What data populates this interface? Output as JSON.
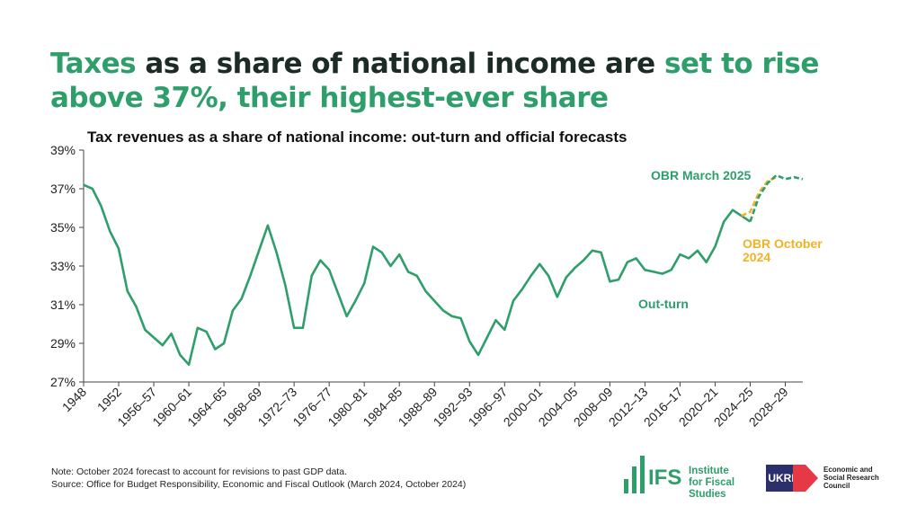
{
  "header": {
    "title_parts": [
      "Taxes",
      "as a share of national income are",
      "set to rise above 37%, their highest-ever share"
    ]
  },
  "chart_data": {
    "type": "line",
    "title": "Tax revenues as a share of national income: out-turn and official forecasts",
    "categories": [
      "1948",
      null,
      null,
      null,
      "1952",
      null,
      null,
      null,
      "1956–57",
      null,
      null,
      null,
      "1960–61",
      null,
      null,
      null,
      "1964–65",
      null,
      null,
      null,
      "1968–69",
      null,
      null,
      null,
      "1972–73",
      null,
      null,
      null,
      "1976–77",
      null,
      null,
      null,
      "1980–81",
      null,
      null,
      null,
      "1984–85",
      null,
      null,
      null,
      "1988–89",
      null,
      null,
      null,
      "1992–93",
      null,
      null,
      null,
      "1996–97",
      null,
      null,
      null,
      "2000–01",
      null,
      null,
      null,
      "2004–05",
      null,
      null,
      null,
      "2008–09",
      null,
      null,
      null,
      "2012–13",
      null,
      null,
      null,
      "2016–17",
      null,
      null,
      null,
      "2020–21",
      null,
      null,
      null,
      "2024–25",
      null,
      null,
      null,
      "2028–29",
      null,
      null
    ],
    "series": [
      {
        "name": "Out-turn",
        "color": "#2e9e6b",
        "dashed": false,
        "values": [
          37.2,
          37.0,
          36.1,
          34.8,
          33.9,
          31.7,
          30.9,
          29.7,
          29.3,
          28.9,
          29.5,
          28.4,
          27.9,
          29.8,
          29.6,
          28.7,
          29.0,
          30.7,
          31.3,
          32.5,
          33.8,
          35.1,
          33.7,
          32.0,
          29.8,
          29.8,
          32.5,
          33.3,
          32.8,
          31.6,
          30.4,
          31.2,
          32.1,
          34.0,
          33.7,
          33.0,
          33.6,
          32.7,
          32.5,
          31.7,
          31.2,
          30.7,
          30.4,
          30.3,
          29.1,
          28.4,
          29.3,
          30.2,
          29.7,
          31.2,
          31.8,
          32.5,
          33.1,
          32.5,
          31.4,
          32.4,
          32.9,
          33.3,
          33.8,
          33.7,
          32.2,
          32.3,
          33.2,
          33.4,
          32.8,
          32.7,
          32.6,
          32.8,
          33.6,
          33.4,
          33.8,
          33.2,
          34.0,
          35.3,
          35.9,
          35.6,
          35.3,
          null,
          null,
          null,
          null,
          null,
          null
        ]
      },
      {
        "name": "OBR October 2024",
        "color": "#f0b323",
        "dashed": true,
        "values": [
          null,
          null,
          null,
          null,
          null,
          null,
          null,
          null,
          null,
          null,
          null,
          null,
          null,
          null,
          null,
          null,
          null,
          null,
          null,
          null,
          null,
          null,
          null,
          null,
          null,
          null,
          null,
          null,
          null,
          null,
          null,
          null,
          null,
          null,
          null,
          null,
          null,
          null,
          null,
          null,
          null,
          null,
          null,
          null,
          null,
          null,
          null,
          null,
          null,
          null,
          null,
          null,
          null,
          null,
          null,
          null,
          null,
          null,
          null,
          null,
          null,
          null,
          null,
          null,
          null,
          null,
          null,
          null,
          null,
          null,
          null,
          null,
          null,
          null,
          null,
          35.6,
          35.8,
          36.8,
          37.4,
          37.6,
          null,
          null,
          null
        ]
      },
      {
        "name": "OBR March 2025",
        "color": "#2e9e6b",
        "dashed": true,
        "values": [
          null,
          null,
          null,
          null,
          null,
          null,
          null,
          null,
          null,
          null,
          null,
          null,
          null,
          null,
          null,
          null,
          null,
          null,
          null,
          null,
          null,
          null,
          null,
          null,
          null,
          null,
          null,
          null,
          null,
          null,
          null,
          null,
          null,
          null,
          null,
          null,
          null,
          null,
          null,
          null,
          null,
          null,
          null,
          null,
          null,
          null,
          null,
          null,
          null,
          null,
          null,
          null,
          null,
          null,
          null,
          null,
          null,
          null,
          null,
          null,
          null,
          null,
          null,
          null,
          null,
          null,
          null,
          null,
          null,
          null,
          null,
          null,
          null,
          null,
          null,
          null,
          35.3,
          36.6,
          37.3,
          37.7,
          37.5,
          37.6,
          37.5
        ]
      }
    ],
    "ylim": [
      27,
      39
    ],
    "yticks": [
      {
        "value": 27,
        "label": "27%"
      },
      {
        "value": 29,
        "label": "29%"
      },
      {
        "value": 31,
        "label": "31%"
      },
      {
        "value": 33,
        "label": "33%"
      },
      {
        "value": 35,
        "label": "35%"
      },
      {
        "value": 37,
        "label": "37%"
      },
      {
        "value": 39,
        "label": "39%"
      }
    ],
    "grid": false
  },
  "footer": {
    "note": "Note: October 2024 forecast to account for revisions to past GDP data.",
    "source": "Source: Office for Budget Responsibility, Economic and Fiscal Outlook (March 2024, October 2024)",
    "ifs": "IFS",
    "ifs_name": "Institute for Fiscal Studies",
    "ukri": "UKRI",
    "esrc": "Economic and Social Research Council"
  }
}
